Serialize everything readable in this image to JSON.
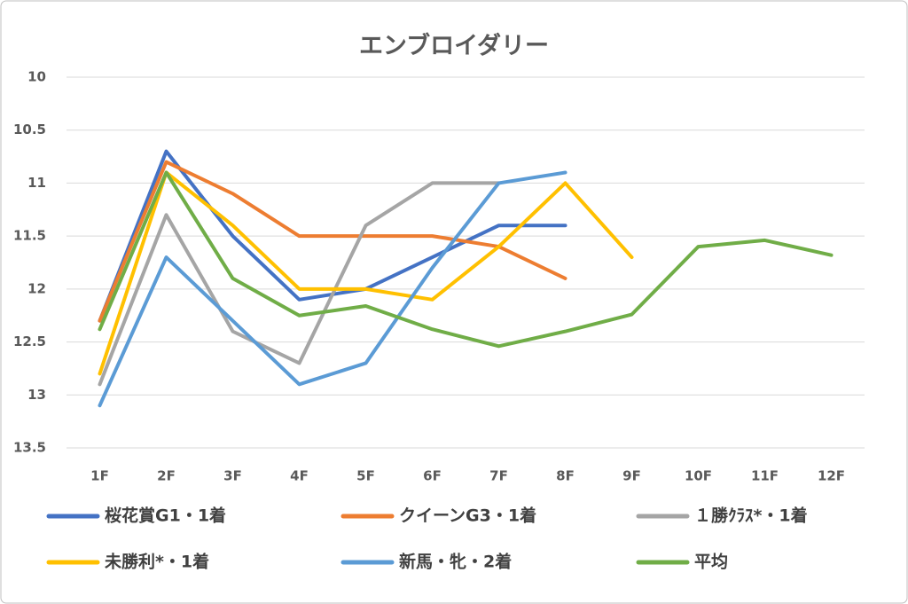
{
  "chart_data": {
    "type": "line",
    "title": "エンブロイダリー",
    "categories": [
      "1F",
      "2F",
      "3F",
      "4F",
      "5F",
      "6F",
      "7F",
      "8F",
      "9F",
      "10F",
      "11F",
      "12F"
    ],
    "series": [
      {
        "name": "桜花賞G1・1着",
        "color": "#4472c4",
        "values": [
          12.3,
          10.7,
          11.5,
          12.1,
          12.0,
          11.7,
          11.4,
          11.4,
          null,
          null,
          null,
          null
        ]
      },
      {
        "name": "クイーンG3・1着",
        "color": "#ed7d31",
        "values": [
          12.3,
          10.8,
          11.1,
          11.5,
          11.5,
          11.5,
          11.6,
          11.9,
          null,
          null,
          null,
          null
        ]
      },
      {
        "name": "１勝ｸﾗｽ*・1着",
        "color": "#a5a5a5",
        "values": [
          12.9,
          11.3,
          12.4,
          12.7,
          11.4,
          11.0,
          11.0,
          null,
          null,
          null,
          null,
          null
        ]
      },
      {
        "name": "未勝利*・1着",
        "color": "#ffc000",
        "values": [
          12.8,
          10.9,
          11.4,
          12.0,
          12.0,
          12.1,
          11.6,
          11.0,
          11.7,
          null,
          null,
          null
        ]
      },
      {
        "name": "新馬・牝・2着",
        "color": "#5b9bd5",
        "values": [
          13.1,
          11.7,
          12.3,
          12.9,
          12.7,
          11.8,
          11.0,
          10.9,
          null,
          null,
          null,
          null
        ]
      },
      {
        "name": "平均",
        "color": "#70ad47",
        "values": [
          12.38,
          10.9,
          11.9,
          12.25,
          12.16,
          12.38,
          12.54,
          12.4,
          12.24,
          11.6,
          11.54,
          11.68
        ]
      }
    ],
    "ylim": [
      10,
      13.5
    ],
    "yticks": [
      10,
      10.5,
      11,
      11.5,
      12,
      12.5,
      13,
      13.5
    ],
    "y_reversed": true,
    "grid": true
  }
}
